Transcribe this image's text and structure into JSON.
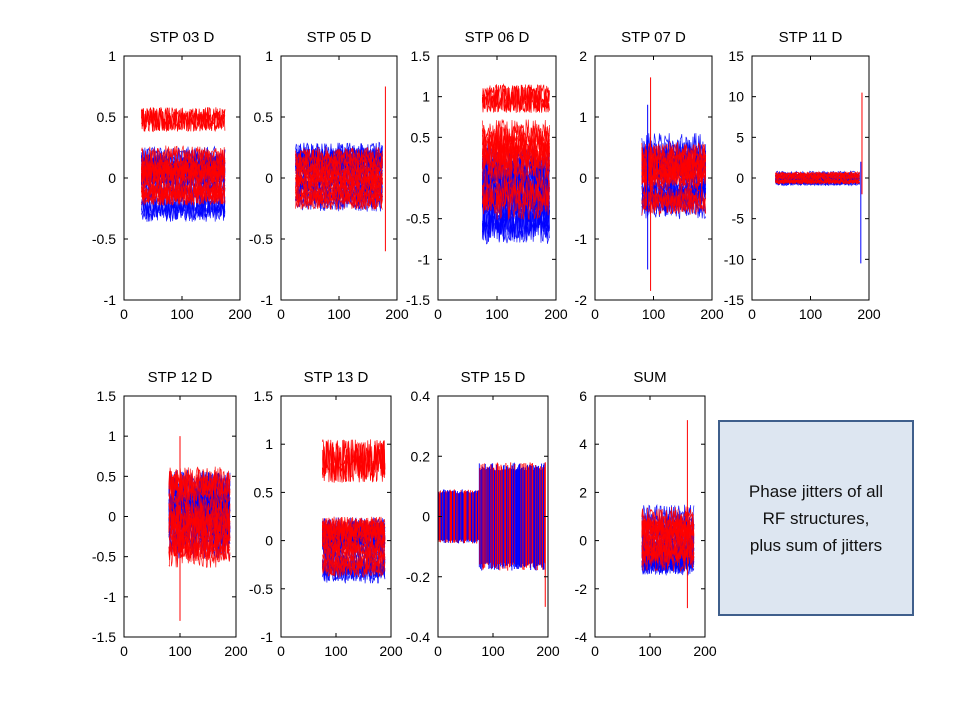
{
  "colors": {
    "series_a": "#0000ff",
    "series_b": "#ff0000",
    "axis": "#000000",
    "note_fill": "#dde6f1",
    "note_border": "#3f5f8c"
  },
  "note": {
    "text": "Phase jitters of all\nRF structures,\nplus sum of jitters"
  },
  "chart_data": [
    {
      "type": "line",
      "title": "STP 03 D",
      "xlim": [
        0,
        200
      ],
      "ylim": [
        -1,
        1
      ],
      "xticks": [
        "0",
        "100",
        "200"
      ],
      "yticks": [
        "-1",
        "-0.5",
        "0",
        "0.5",
        "1"
      ],
      "x_range": [
        30,
        175
      ],
      "blue": {
        "center": -0.05,
        "spread": 0.5
      },
      "red": {
        "center": 0.0,
        "spread": 0.45
      },
      "red_top_band": [
        0.38,
        0.58
      ],
      "spikes": []
    },
    {
      "type": "line",
      "title": "STP 05 D",
      "xlim": [
        0,
        200
      ],
      "ylim": [
        -1,
        1
      ],
      "xticks": [
        "0",
        "100",
        "200"
      ],
      "yticks": [
        "-1",
        "-0.5",
        "0",
        "0.5",
        "1"
      ],
      "x_range": [
        25,
        175
      ],
      "blue": {
        "center": 0.0,
        "spread": 0.47
      },
      "red": {
        "center": 0.0,
        "spread": 0.42
      },
      "spikes": [
        {
          "x": 180,
          "y0": -0.6,
          "y1": 0.75
        }
      ]
    },
    {
      "type": "line",
      "title": "STP 06 D",
      "xlim": [
        0,
        200
      ],
      "ylim": [
        -1.5,
        1.5
      ],
      "xticks": [
        "0",
        "100",
        "200"
      ],
      "yticks": [
        "-1.5",
        "-1",
        "-0.5",
        "0",
        "0.5",
        "1",
        "1.5"
      ],
      "x_range": [
        75,
        190
      ],
      "blue": {
        "center": -0.1,
        "spread": 1.2
      },
      "red": {
        "center": 0.1,
        "spread": 1.0
      },
      "red_top_band": [
        0.8,
        1.15
      ],
      "spikes": []
    },
    {
      "type": "line",
      "title": "STP 07 D",
      "xlim": [
        0,
        200
      ],
      "ylim": [
        -2,
        2
      ],
      "xticks": [
        "0",
        "100",
        "200"
      ],
      "yticks": [
        "-2",
        "-1",
        "0",
        "1",
        "2"
      ],
      "x_range": [
        80,
        190
      ],
      "blue": {
        "center": 0.0,
        "spread": 1.2
      },
      "red": {
        "center": 0.0,
        "spread": 1.0
      },
      "spikes": [
        {
          "x": 95,
          "y0": -1.85,
          "y1": 1.65
        },
        {
          "x": 90,
          "y0": -1.5,
          "y1": 1.2
        }
      ]
    },
    {
      "type": "line",
      "title": "STP 11 D",
      "xlim": [
        0,
        200
      ],
      "ylim": [
        -15,
        15
      ],
      "xticks": [
        "0",
        "100",
        "200"
      ],
      "yticks": [
        "-15",
        "-10",
        "-5",
        "0",
        "5",
        "10",
        "15"
      ],
      "x_range": [
        40,
        185
      ],
      "blue": {
        "center": 0.0,
        "spread": 1.5
      },
      "red": {
        "center": 0.0,
        "spread": 1.3
      },
      "spikes": [
        {
          "x": 188,
          "y0": -2,
          "y1": 10.5
        },
        {
          "x": 186,
          "y0": -10.5,
          "y1": 2
        }
      ]
    },
    {
      "type": "line",
      "title": "STP 12 D",
      "xlim": [
        0,
        200
      ],
      "ylim": [
        -1.5,
        1.5
      ],
      "xticks": [
        "0",
        "100",
        "200"
      ],
      "yticks": [
        "-1.5",
        "-1",
        "-0.5",
        "0",
        "0.5",
        "1",
        "1.5"
      ],
      "x_range": [
        80,
        190
      ],
      "blue": {
        "center": 0.0,
        "spread": 1.05
      },
      "red": {
        "center": 0.0,
        "spread": 1.05
      },
      "spikes": [
        {
          "x": 100,
          "y0": -1.3,
          "y1": 1.0
        }
      ]
    },
    {
      "type": "line",
      "title": "STP 13 D",
      "xlim": [
        0,
        200
      ],
      "ylim": [
        -1,
        1.5
      ],
      "xticks": [
        "0",
        "100",
        "200"
      ],
      "yticks": [
        "-1",
        "-0.5",
        "0",
        "0.5",
        "1",
        "1.5"
      ],
      "x_range": [
        75,
        190
      ],
      "blue": {
        "center": -0.1,
        "spread": 0.6
      },
      "red": {
        "center": -0.05,
        "spread": 0.55
      },
      "red_top_band": [
        0.6,
        1.05
      ],
      "spikes": []
    },
    {
      "type": "line",
      "title": "STP 15 D",
      "xlim": [
        0,
        200
      ],
      "ylim": [
        -0.4,
        0.4
      ],
      "xticks": [
        "0",
        "100",
        "200"
      ],
      "yticks": [
        "-0.4",
        "-0.2",
        "0",
        "0.2",
        "0.4"
      ],
      "segments": [
        {
          "x": [
            0,
            75
          ],
          "lo": -0.09,
          "hi": 0.09
        },
        {
          "x": [
            75,
            195
          ],
          "lo": -0.18,
          "hi": 0.18
        }
      ],
      "spikes": [
        {
          "x": 195,
          "y0": -0.3,
          "y1": 0.18
        }
      ]
    },
    {
      "type": "line",
      "title": "SUM",
      "xlim": [
        0,
        200
      ],
      "ylim": [
        -4,
        6
      ],
      "xticks": [
        "0",
        "100",
        "200"
      ],
      "yticks": [
        "-4",
        "-2",
        "0",
        "2",
        "4",
        "6"
      ],
      "x_range": [
        85,
        180
      ],
      "blue": {
        "center": 0.0,
        "spread": 2.6
      },
      "red": {
        "center": 0.0,
        "spread": 2.5
      },
      "spikes": [
        {
          "x": 168,
          "y0": -2.8,
          "y1": 5.0
        }
      ]
    }
  ]
}
